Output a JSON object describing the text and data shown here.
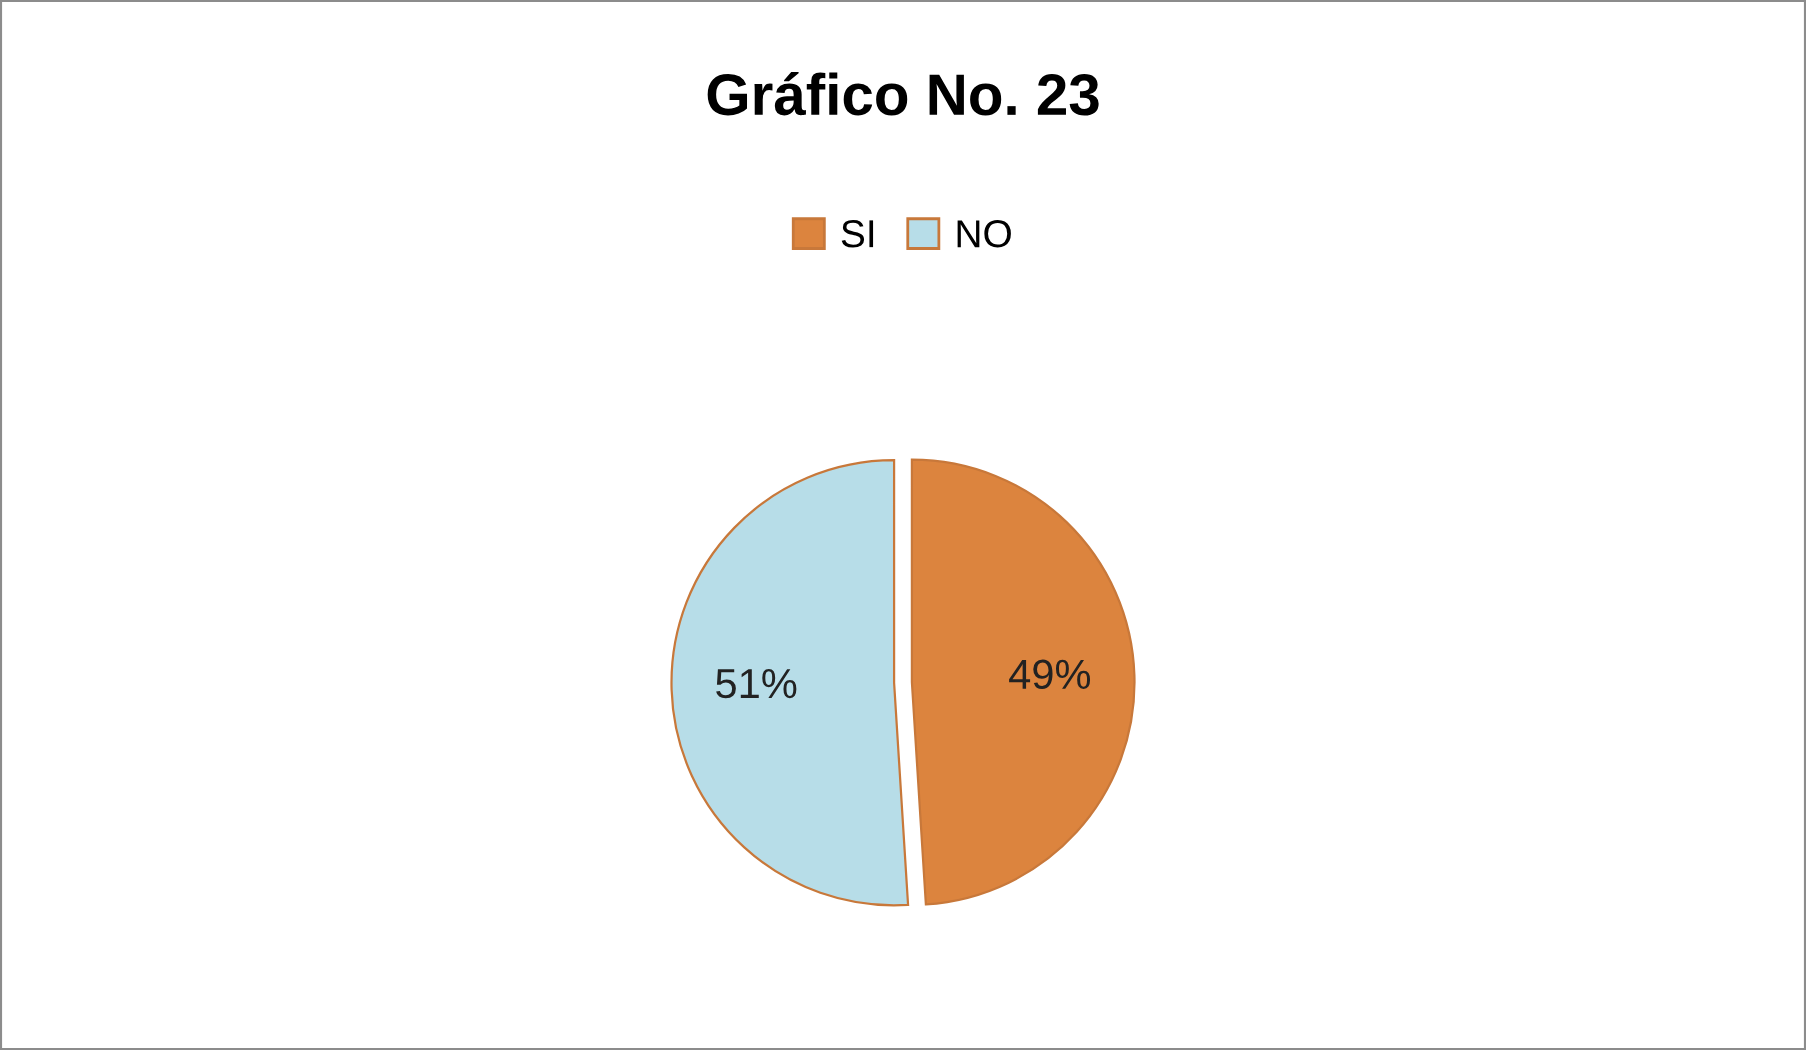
{
  "chart_data": {
    "type": "pie",
    "title": "Gráfico No. 23",
    "categories": [
      "SI",
      "NO"
    ],
    "values": [
      49,
      51
    ],
    "colors": [
      "#dc843e",
      "#b7dde8"
    ],
    "value_labels": [
      "49%",
      "51%"
    ],
    "legend": "top"
  }
}
